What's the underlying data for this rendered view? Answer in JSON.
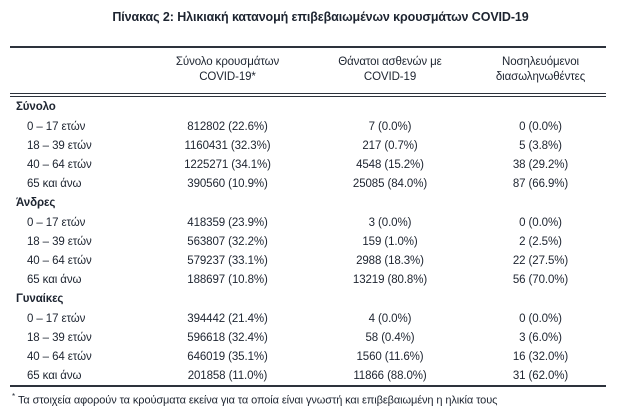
{
  "page": {
    "title": "Πίνακας 2: Ηλικιακή κατανομή επιβεβαιωμένων κρουσμάτων COVID-19"
  },
  "colors": {
    "text": "#1d2430",
    "rule": "#2d323c",
    "background": "#ffffff"
  },
  "table": {
    "headers": {
      "col1": "",
      "col2_line1": "Σύνολο κρουσμάτων",
      "col2_line2": "COVID-19*",
      "col3_line1": "Θάνατοι ασθενών με",
      "col3_line2": "COVID-19",
      "col4_line1": "Νοσηλευόμενοι",
      "col4_line2": "διασωληνωθέντες"
    },
    "sections": [
      {
        "label": "Σύνολο",
        "rows": [
          {
            "age": "0 – 17 ετών",
            "cases": "812802 (22.6%)",
            "deaths": "7 (0.0%)",
            "intubated": "0 (0.0%)"
          },
          {
            "age": "18 – 39 ετών",
            "cases": "1160431 (32.3%)",
            "deaths": "217 (0.7%)",
            "intubated": "5 (3.8%)"
          },
          {
            "age": "40 – 64 ετών",
            "cases": "1225271 (34.1%)",
            "deaths": "4548 (15.2%)",
            "intubated": "38 (29.2%)"
          },
          {
            "age": "65 και άνω",
            "cases": "390560 (10.9%)",
            "deaths": "25085 (84.0%)",
            "intubated": "87 (66.9%)"
          }
        ]
      },
      {
        "label": "Άνδρες",
        "rows": [
          {
            "age": "0 – 17 ετών",
            "cases": "418359 (23.9%)",
            "deaths": "3 (0.0%)",
            "intubated": "0 (0.0%)"
          },
          {
            "age": "18 – 39 ετών",
            "cases": "563807 (32.2%)",
            "deaths": "159 (1.0%)",
            "intubated": "2 (2.5%)"
          },
          {
            "age": "40 – 64 ετών",
            "cases": "579237 (33.1%)",
            "deaths": "2988 (18.3%)",
            "intubated": "22 (27.5%)"
          },
          {
            "age": "65 και άνω",
            "cases": "188697 (10.8%)",
            "deaths": "13219 (80.8%)",
            "intubated": "56 (70.0%)"
          }
        ]
      },
      {
        "label": "Γυναίκες",
        "rows": [
          {
            "age": "0 – 17 ετών",
            "cases": "394442 (21.4%)",
            "deaths": "4 (0.0%)",
            "intubated": "0 (0.0%)"
          },
          {
            "age": "18 – 39 ετών",
            "cases": "596618 (32.4%)",
            "deaths": "58 (0.4%)",
            "intubated": "3 (6.0%)"
          },
          {
            "age": "40 – 64 ετών",
            "cases": "646019 (35.1%)",
            "deaths": "1560 (11.6%)",
            "intubated": "16 (32.0%)"
          },
          {
            "age": "65 και άνω",
            "cases": "201858 (11.0%)",
            "deaths": "11866 (88.0%)",
            "intubated": "31 (62.0%)"
          }
        ]
      }
    ],
    "footnote_marker": "*",
    "footnote": "Τα στοιχεία αφορούν τα κρούσματα εκείνα για τα οποία είναι γνωστή και επιβεβαιωμένη η ηλικία τους"
  }
}
